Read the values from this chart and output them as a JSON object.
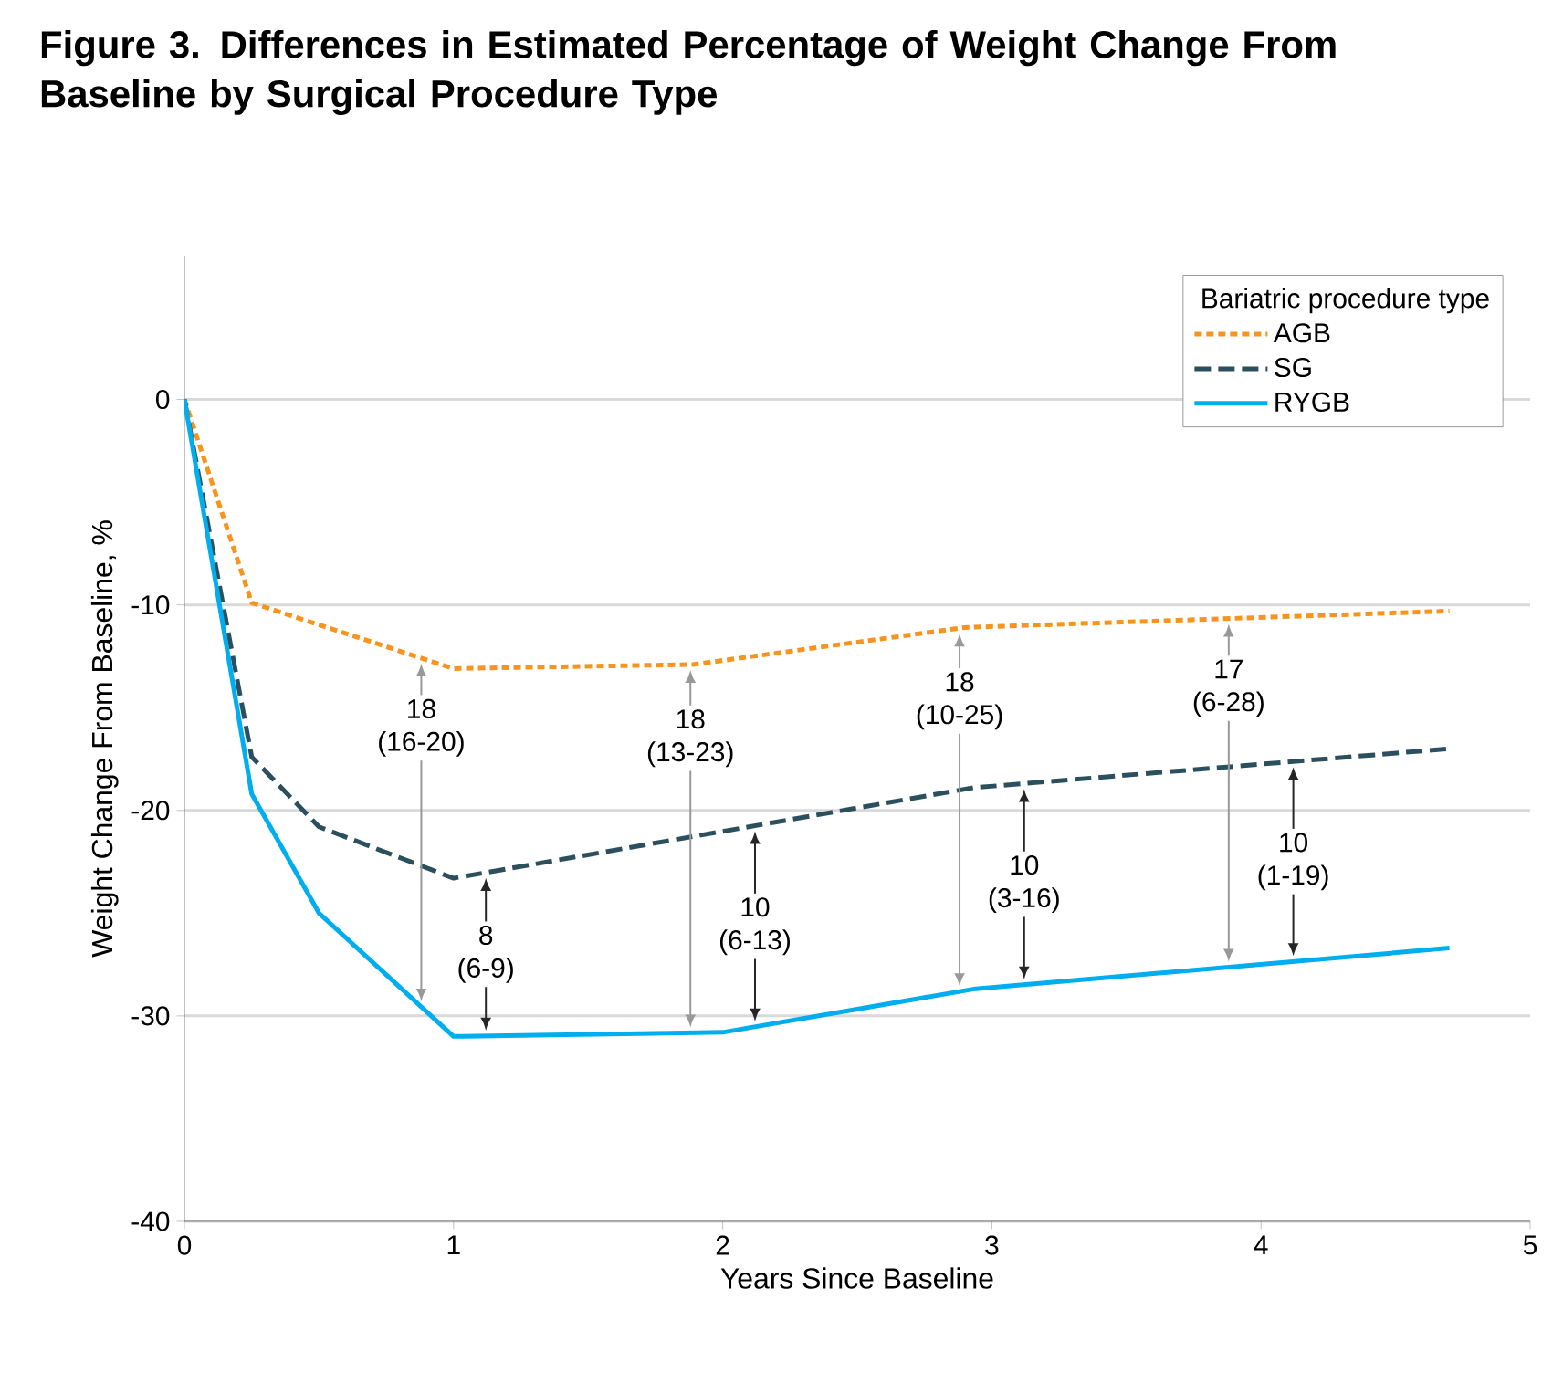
{
  "chart_data": {
    "type": "line",
    "title": "Figure 3. Differences in Estimated Percentage of Weight Change From Baseline by Surgical Procedure Type",
    "xlabel": "Years Since Baseline",
    "ylabel": "Weight Change From Baseline, %",
    "legend_title": "Bariatric procedure type",
    "series": [
      {
        "name": "AGB",
        "color": "#f7941d",
        "line_style": "dotted",
        "x": [
          0,
          0.25,
          1,
          1.89,
          2.9,
          4.7
        ],
        "values": [
          0,
          -9.9,
          -13.1,
          -12.9,
          -11.1,
          -10.3
        ]
      },
      {
        "name": "SG",
        "color": "#2b4f5c",
        "line_style": "dashed",
        "x": [
          0,
          0.25,
          0.5,
          1,
          2.93,
          4.7
        ],
        "values": [
          0,
          -17.4,
          -20.8,
          -23.3,
          -18.9,
          -17.0
        ]
      },
      {
        "name": "RYGB",
        "color": "#00aeef",
        "line_style": "solid",
        "x": [
          0,
          0.25,
          0.5,
          1,
          2,
          2.93,
          4.7
        ],
        "values": [
          0,
          -19.2,
          -25.0,
          -31.0,
          -30.8,
          -28.7,
          -26.7
        ]
      }
    ],
    "xlim": [
      0,
      5
    ],
    "ylim": [
      -40,
      7
    ],
    "xticks": [
      0,
      1,
      2,
      3,
      4,
      5
    ],
    "yticks": [
      0,
      -10,
      -20,
      -30,
      -40
    ],
    "grid": "y",
    "legend": "top right",
    "marker": "none",
    "annotations": [
      "18",
      "(16-20)",
      "8",
      "(6-9)",
      "18",
      "(13-23)",
      "10",
      "(6-13)",
      "18",
      "(10-25)",
      "10",
      "(3-16)",
      "17",
      "(6-28)",
      "10",
      "(1-19)"
    ]
  }
}
